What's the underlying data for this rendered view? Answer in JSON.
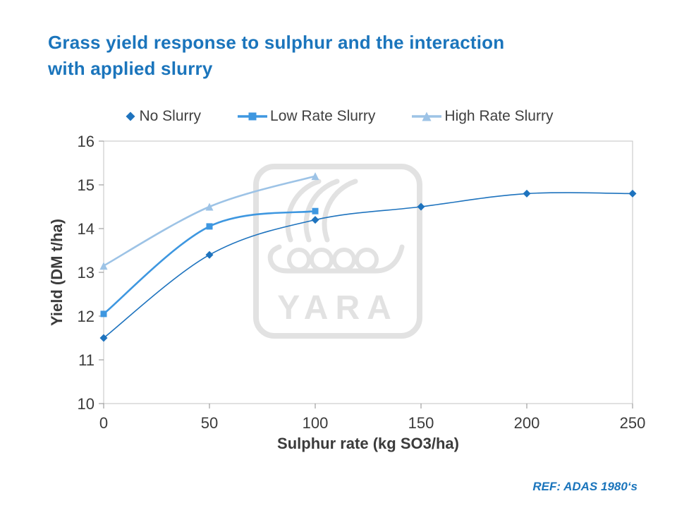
{
  "title": {
    "line1": "Grass yield response to sulphur and the interaction",
    "line2": "with applied slurry"
  },
  "ref_note": "REF: ADAS 1980‘s",
  "watermark": {
    "text": "YARA"
  },
  "colors": {
    "title_blue": "#1B75BC",
    "legend_text": "#404040",
    "tick_label": "#3B3B3B",
    "axis_title": "#3B3B3B",
    "plot_border": "#C3C3C3",
    "tick": "#8C8C8C",
    "watermark": "#E2E2E2"
  },
  "chart_data": {
    "type": "line",
    "title": "Grass yield response to sulphur and the interaction with applied slurry",
    "xlabel": "Sulphur rate (kg SO3/ha)",
    "ylabel": "Yield (DM t/ha)",
    "xlim": [
      0,
      250
    ],
    "ylim": [
      10,
      16
    ],
    "xticks": [
      0,
      50,
      100,
      150,
      200,
      250
    ],
    "yticks": [
      10,
      11,
      12,
      13,
      14,
      15,
      16
    ],
    "grid": false,
    "legend_position": "top",
    "series": [
      {
        "name": "No Slurry",
        "marker": "diamond",
        "color": "#1E73BE",
        "line_width": 1.6,
        "legend_line": false,
        "x": [
          0,
          50,
          100,
          150,
          200,
          250
        ],
        "y": [
          11.5,
          13.4,
          14.2,
          14.5,
          14.8,
          14.8
        ]
      },
      {
        "name": "Low Rate Slurry",
        "marker": "square",
        "color": "#3E97E0",
        "line_width": 2.6,
        "legend_line": true,
        "x": [
          0,
          50,
          100
        ],
        "y": [
          12.05,
          14.05,
          14.4
        ]
      },
      {
        "name": "High Rate Slurry",
        "marker": "triangle",
        "color": "#9DC3E6",
        "line_width": 2.6,
        "legend_line": true,
        "x": [
          0,
          50,
          100
        ],
        "y": [
          13.15,
          14.5,
          15.2
        ]
      }
    ]
  }
}
